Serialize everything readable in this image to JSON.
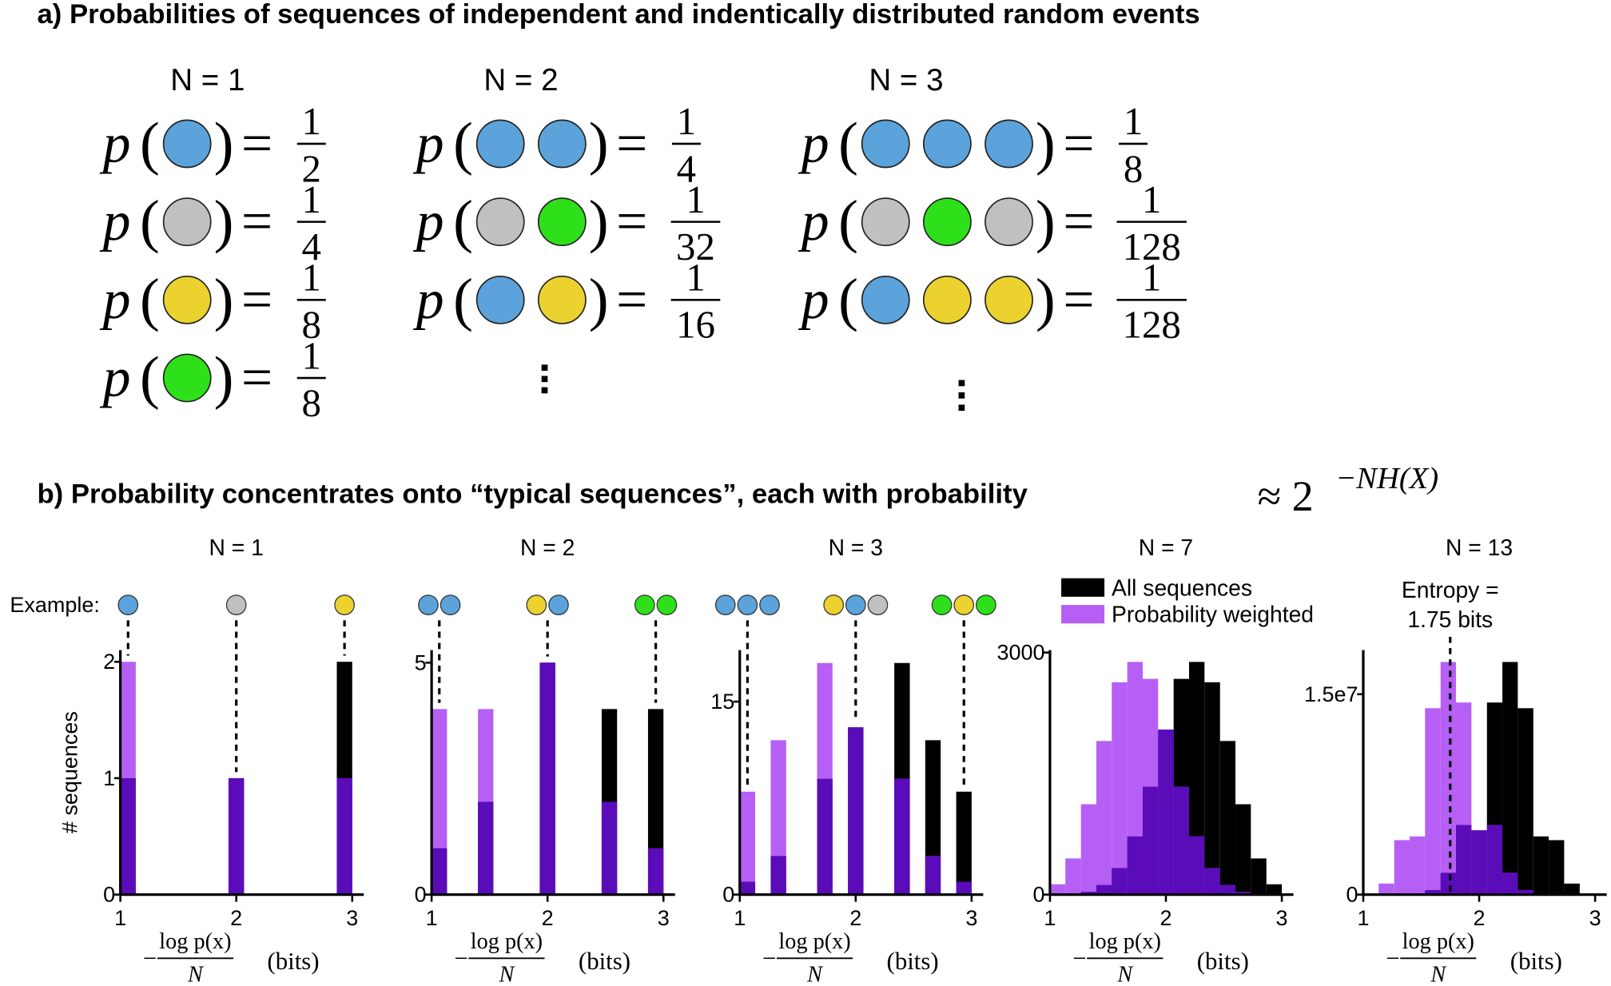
{
  "panel_a": {
    "title": "a) Probabilities of sequences of independent and indentically distributed random events",
    "function": "p",
    "open": "(",
    "close": ")",
    "equals": "=",
    "columns": [
      {
        "label": "N = 1",
        "rows": [
          {
            "sequence": [
              "#5ba3da"
            ],
            "numerator": 1,
            "denominator": 2
          },
          {
            "sequence": [
              "#c0c0c0"
            ],
            "numerator": 1,
            "denominator": 4
          },
          {
            "sequence": [
              "#ebd22f"
            ],
            "numerator": 1,
            "denominator": 8
          },
          {
            "sequence": [
              "#2ee01a"
            ],
            "numerator": 1,
            "denominator": 8
          }
        ]
      },
      {
        "label": "N = 2",
        "rows": [
          {
            "sequence": [
              "#5ba3da",
              "#5ba3da"
            ],
            "numerator": 1,
            "denominator": 4
          },
          {
            "sequence": [
              "#c0c0c0",
              "#2ee01a"
            ],
            "numerator": 1,
            "denominator": 32
          },
          {
            "sequence": [
              "#5ba3da",
              "#ebd22f"
            ],
            "numerator": 1,
            "denominator": 16
          }
        ]
      },
      {
        "label": "N = 3",
        "rows": [
          {
            "sequence": [
              "#5ba3da",
              "#5ba3da",
              "#5ba3da"
            ],
            "numerator": 1,
            "denominator": 8
          },
          {
            "sequence": [
              "#c0c0c0",
              "#2ee01a",
              "#c0c0c0"
            ],
            "numerator": 1,
            "denominator": 128
          },
          {
            "sequence": [
              "#5ba3da",
              "#ebd22f",
              "#ebd22f"
            ],
            "numerator": 1,
            "denominator": 128
          }
        ]
      }
    ]
  },
  "panel_b": {
    "title": "b) Probability concentrates onto “typical sequences”, each with probability",
    "title_math_base": "≈ 2",
    "title_math_exponent": "−NH(X)"
  },
  "chart_data": [
    {
      "type": "histogram",
      "title": "N = 1",
      "ylabel": "# sequences",
      "example_label": "Example:",
      "xlabel": {
        "prefix": "−",
        "numerator": "log p(x)",
        "denominator": "N",
        "unit": "(bits)"
      },
      "bins": [
        1,
        1.133,
        1.267,
        1.4,
        1.533,
        1.667,
        1.8,
        1.933,
        2.067,
        2.2,
        2.333,
        2.467,
        2.6,
        2.733,
        2.867,
        3
      ],
      "series": [
        {
          "color": "#000000",
          "values": [
            1,
            0,
            0,
            0,
            0,
            0,
            0,
            1,
            0,
            0,
            0,
            0,
            0,
            0,
            2
          ]
        },
        {
          "color": "#b65ff5",
          "values": [
            2,
            0,
            0,
            0,
            0,
            0,
            0,
            1,
            0,
            0,
            0,
            0,
            0,
            0,
            1
          ]
        }
      ],
      "overlap_color": "#5a0cb9",
      "examples": [
        {
          "x": 1,
          "sequence": [
            "#5ba3da"
          ]
        },
        {
          "x": 2,
          "sequence": [
            "#c0c0c0"
          ]
        },
        {
          "x": 3,
          "sequence": [
            "#ebd22f"
          ]
        }
      ],
      "xlim": [
        1,
        3.1
      ],
      "ylim": [
        0,
        2.1
      ],
      "xticks": [
        1,
        2,
        3
      ],
      "yticks": [
        0,
        1,
        2
      ]
    },
    {
      "type": "histogram",
      "title": "N = 2",
      "xlabel": {
        "prefix": "−",
        "numerator": "log p(x)",
        "denominator": "N",
        "unit": "(bits)"
      },
      "bins": [
        1,
        1.133,
        1.267,
        1.4,
        1.533,
        1.667,
        1.8,
        1.933,
        2.067,
        2.2,
        2.333,
        2.467,
        2.6,
        2.733,
        2.867,
        3
      ],
      "series": [
        {
          "color": "#000000",
          "values": [
            1,
            0,
            0,
            2,
            0,
            0,
            0,
            5,
            0,
            0,
            0,
            4,
            0,
            0,
            4
          ]
        },
        {
          "color": "#b65ff5",
          "values": [
            4,
            0,
            0,
            4,
            0,
            0,
            0,
            5,
            0,
            0,
            0,
            2,
            0,
            0,
            1
          ]
        }
      ],
      "overlap_color": "#5a0cb9",
      "examples": [
        {
          "x": 1,
          "sequence": [
            "#5ba3da",
            "#5ba3da"
          ]
        },
        {
          "x": 2,
          "sequence": [
            "#ebd22f",
            "#5ba3da"
          ]
        },
        {
          "x": 3,
          "sequence": [
            "#2ee01a",
            "#2ee01a"
          ]
        }
      ],
      "xlim": [
        1,
        3.1
      ],
      "ylim": [
        0,
        5.27
      ],
      "xticks": [
        1,
        2,
        3
      ],
      "yticks": [
        0,
        5
      ]
    },
    {
      "type": "histogram",
      "title": "N = 3",
      "xlabel": {
        "prefix": "−",
        "numerator": "log p(x)",
        "denominator": "N",
        "unit": "(bits)"
      },
      "bins": [
        1,
        1.133,
        1.267,
        1.4,
        1.533,
        1.667,
        1.8,
        1.933,
        2.067,
        2.2,
        2.333,
        2.467,
        2.6,
        2.733,
        2.867,
        3
      ],
      "series": [
        {
          "color": "#000000",
          "values": [
            1,
            0,
            3,
            0,
            0,
            9,
            0,
            13,
            0,
            0,
            18,
            0,
            12,
            0,
            8
          ]
        },
        {
          "color": "#b65ff5",
          "values": [
            8,
            0,
            12,
            0,
            0,
            18,
            0,
            13,
            0,
            0,
            9,
            0,
            3,
            0,
            1
          ]
        }
      ],
      "overlap_color": "#5a0cb9",
      "examples": [
        {
          "x": 1,
          "sequence": [
            "#5ba3da",
            "#5ba3da",
            "#5ba3da"
          ]
        },
        {
          "x": 2,
          "sequence": [
            "#ebd22f",
            "#5ba3da",
            "#c0c0c0"
          ]
        },
        {
          "x": 3,
          "sequence": [
            "#2ee01a",
            "#ebd22f",
            "#2ee01a"
          ]
        }
      ],
      "xlim": [
        1,
        3.1
      ],
      "ylim": [
        0,
        19
      ],
      "xticks": [
        1,
        2,
        3
      ],
      "yticks": [
        0,
        15
      ]
    },
    {
      "type": "histogram",
      "title": "N = 7",
      "legend": "top",
      "xlabel": {
        "prefix": "−",
        "numerator": "log p(x)",
        "denominator": "N",
        "unit": "(bits)"
      },
      "bins": [
        1,
        1.133,
        1.267,
        1.4,
        1.533,
        1.667,
        1.8,
        1.933,
        2.067,
        2.2,
        2.333,
        2.467,
        2.6,
        2.733,
        2.867,
        3
      ],
      "series": [
        {
          "name": "All sequences",
          "color": "#000000",
          "values": [
            1,
            7,
            35,
            119,
            329,
            721,
            1337,
            2045,
            2674,
            2884,
            2632,
            1904,
            1120,
            448,
            128
          ]
        },
        {
          "name": "Probability weighted",
          "color": "#b65ff5",
          "values": [
            128,
            448,
            1120,
            1904,
            2632,
            2884,
            2674,
            2045,
            1337,
            721,
            329,
            119,
            35,
            7,
            1
          ]
        }
      ],
      "overlap_color": "#5a0cb9",
      "xlim": [
        1,
        3.1
      ],
      "ylim": [
        0,
        3030
      ],
      "xticks": [
        1,
        2,
        3
      ],
      "yticks": [
        0,
        3000
      ]
    },
    {
      "type": "histogram",
      "title": "N = 13",
      "xlabel": {
        "prefix": "−",
        "numerator": "log p(x)",
        "denominator": "N",
        "unit": "(bits)"
      },
      "bins": [
        1,
        1.133,
        1.267,
        1.4,
        1.533,
        1.667,
        1.8,
        1.933,
        2.067,
        2.2,
        2.333,
        2.467,
        2.6,
        2.733,
        2.867,
        3
      ],
      "series": [
        {
          "color": "#000000",
          "values": [
            14,
            702,
            13182,
            34034,
            339339,
            1633775,
            5213871,
            4808545,
            14379274,
            17413968,
            13952224,
            4356352,
            4076800,
            825344,
            61440
          ]
        },
        {
          "color": "#b65ff5",
          "values": [
            61440,
            825344,
            4076800,
            4356352,
            13952224,
            17413968,
            14379274,
            4808545,
            5213871,
            1633775,
            339339,
            34034,
            13182,
            702,
            14
          ]
        }
      ],
      "overlap_color": "#5a0cb9",
      "annotation": {
        "lines": [
          "Entropy =",
          "1.75 bits"
        ],
        "x": 1.75
      },
      "xlim": [
        1,
        3.1
      ],
      "ylim": [
        0,
        18300000
      ],
      "xticks": [
        1,
        2,
        3
      ],
      "yticks": [
        0,
        {
          "value": 15000000,
          "label": "1.5e7"
        }
      ]
    }
  ]
}
